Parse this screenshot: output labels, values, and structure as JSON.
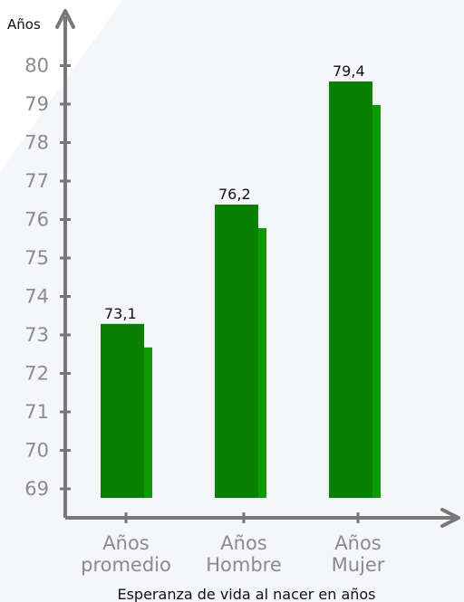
{
  "chart_data": {
    "type": "bar",
    "categories": [
      [
        "Años",
        "promedio"
      ],
      [
        "Años",
        "Hombre"
      ],
      [
        "Años",
        "Mujer"
      ]
    ],
    "values": [
      73.1,
      76.2,
      79.4
    ],
    "data_labels": [
      "73,1",
      "76,2",
      "79,4"
    ],
    "ylabel": "Años",
    "xlabel": "Esperanza de vida al nacer en años",
    "ylim": [
      69,
      80
    ],
    "yticks": [
      69,
      70,
      71,
      72,
      73,
      74,
      75,
      76,
      77,
      78,
      79,
      80
    ],
    "bar_color": "#0a8000",
    "bar_shadow_color": "#0d9a05",
    "axis_color": "#777777",
    "grid": false,
    "legend": "none"
  }
}
